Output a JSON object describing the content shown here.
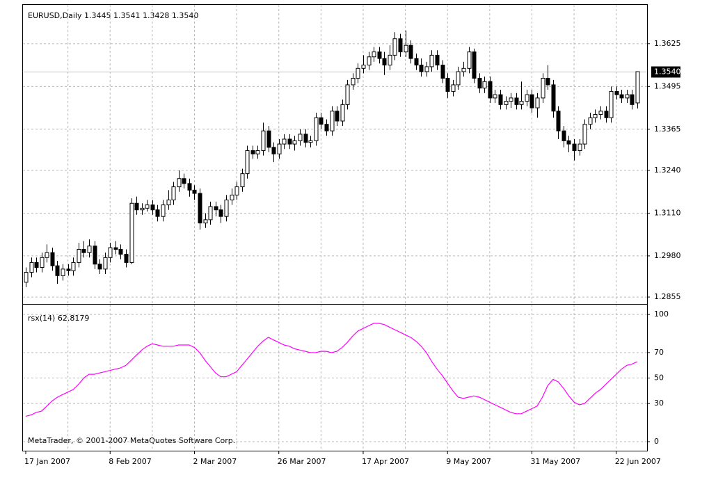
{
  "chart_data": [
    {
      "type": "candlestick",
      "title": "EURUSD,Daily  1.3445 1.3541 1.3428 1.3540",
      "categories": [
        "17 Jan 2007",
        null,
        null,
        null,
        null,
        null,
        null,
        null,
        null,
        null,
        null,
        null,
        null,
        null,
        null,
        null,
        "8 Feb 2007",
        null,
        null,
        null,
        null,
        null,
        null,
        null,
        null,
        null,
        null,
        null,
        null,
        null,
        null,
        null,
        "2 Mar 2007",
        null,
        null,
        null,
        null,
        null,
        null,
        null,
        null,
        null,
        null,
        null,
        null,
        null,
        null,
        null,
        "26 Mar 2007",
        null,
        null,
        null,
        null,
        null,
        null,
        null,
        null,
        null,
        null,
        null,
        null,
        null,
        null,
        null,
        "17 Apr 2007",
        null,
        null,
        null,
        null,
        null,
        null,
        null,
        null,
        null,
        null,
        null,
        null,
        null,
        null,
        null,
        "9 May 2007",
        null,
        null,
        null,
        null,
        null,
        null,
        null,
        null,
        null,
        null,
        null,
        null,
        null,
        null,
        null,
        "31 May 2007",
        null,
        null,
        null,
        null,
        null,
        null,
        null,
        null,
        null,
        null,
        null,
        null,
        null,
        null,
        null,
        "22 Jun 2007",
        null,
        null,
        null,
        null
      ],
      "open": [
        1.29,
        1.293,
        1.296,
        1.2945,
        1.2975,
        1.299,
        1.295,
        1.292,
        1.294,
        1.2935,
        1.296,
        1.3,
        1.299,
        1.301,
        1.2955,
        1.294,
        1.2975,
        1.3005,
        1.3,
        1.2985,
        1.296,
        1.314,
        1.312,
        1.3125,
        1.3135,
        1.312,
        1.31,
        1.3135,
        1.315,
        1.319,
        1.3215,
        1.32,
        1.318,
        1.317,
        1.308,
        1.309,
        1.313,
        1.312,
        1.31,
        1.315,
        1.3165,
        1.319,
        1.323,
        1.33,
        1.329,
        1.33,
        1.336,
        1.331,
        1.329,
        1.332,
        1.3335,
        1.332,
        1.333,
        1.335,
        1.3325,
        1.333,
        1.34,
        1.338,
        1.336,
        1.342,
        1.339,
        1.344,
        1.35,
        1.352,
        1.355,
        1.356,
        1.3585,
        1.36,
        1.358,
        1.356,
        1.359,
        1.364,
        1.36,
        1.362,
        1.358,
        1.356,
        1.354,
        1.3555,
        1.359,
        1.356,
        1.352,
        1.348,
        1.35,
        1.354,
        1.355,
        1.36,
        1.352,
        1.349,
        1.351,
        1.346,
        1.347,
        1.344,
        1.345,
        1.346,
        1.344,
        1.345,
        1.347,
        1.343,
        1.346,
        1.352,
        1.35,
        1.342,
        1.336,
        1.333,
        1.332,
        1.33,
        1.332,
        1.338,
        1.34,
        1.341,
        1.342,
        1.34,
        1.348,
        1.347,
        1.346,
        1.347,
        1.3445
      ],
      "high": [
        1.2945,
        1.2975,
        1.2975,
        1.299,
        1.3015,
        1.3005,
        1.2965,
        1.2955,
        1.2955,
        1.2975,
        1.302,
        1.3025,
        1.303,
        1.3025,
        1.297,
        1.299,
        1.302,
        1.3025,
        1.3015,
        1.3,
        1.3155,
        1.316,
        1.314,
        1.315,
        1.315,
        1.3135,
        1.315,
        1.318,
        1.3205,
        1.324,
        1.323,
        1.3215,
        1.3195,
        1.3185,
        1.311,
        1.3145,
        1.3145,
        1.3135,
        1.3165,
        1.3185,
        1.3205,
        1.3245,
        1.3315,
        1.3315,
        1.3315,
        1.3385,
        1.3375,
        1.3325,
        1.3335,
        1.335,
        1.335,
        1.3345,
        1.3365,
        1.3365,
        1.3345,
        1.3415,
        1.3415,
        1.3395,
        1.3435,
        1.3435,
        1.3455,
        1.3515,
        1.3535,
        1.3565,
        1.359,
        1.36,
        1.3615,
        1.3615,
        1.36,
        1.362,
        1.366,
        1.3655,
        1.3665,
        1.3635,
        1.3595,
        1.358,
        1.357,
        1.3605,
        1.3605,
        1.3575,
        1.3535,
        1.3515,
        1.3555,
        1.357,
        1.3615,
        1.361,
        1.3535,
        1.3525,
        1.3525,
        1.3485,
        1.3485,
        1.3465,
        1.3475,
        1.3475,
        1.351,
        1.3485,
        1.3485,
        1.3475,
        1.3535,
        1.356,
        1.3515,
        1.3435,
        1.3375,
        1.3345,
        1.3335,
        1.3335,
        1.3395,
        1.3415,
        1.3425,
        1.3435,
        1.3435,
        1.3495,
        1.3495,
        1.3485,
        1.3485,
        1.3485,
        1.3541
      ],
      "low": [
        1.2885,
        1.2915,
        1.293,
        1.293,
        1.296,
        1.2935,
        1.2895,
        1.2905,
        1.292,
        1.292,
        1.2945,
        1.2975,
        1.2975,
        1.294,
        1.2925,
        1.2925,
        1.296,
        1.2985,
        1.297,
        1.2945,
        1.2955,
        1.3105,
        1.3105,
        1.3115,
        1.3105,
        1.3085,
        1.3085,
        1.312,
        1.3135,
        1.3175,
        1.3185,
        1.316,
        1.315,
        1.306,
        1.3065,
        1.3075,
        1.31,
        1.308,
        1.3085,
        1.3135,
        1.315,
        1.3175,
        1.3215,
        1.3275,
        1.3275,
        1.3285,
        1.3295,
        1.3265,
        1.3275,
        1.3305,
        1.3305,
        1.33,
        1.3315,
        1.331,
        1.331,
        1.3315,
        1.3365,
        1.3345,
        1.3345,
        1.3375,
        1.3375,
        1.3425,
        1.3485,
        1.3505,
        1.3535,
        1.3545,
        1.357,
        1.3565,
        1.353,
        1.3545,
        1.3575,
        1.3585,
        1.3585,
        1.3565,
        1.3545,
        1.3525,
        1.3525,
        1.354,
        1.3545,
        1.3505,
        1.346,
        1.3465,
        1.3485,
        1.3525,
        1.3535,
        1.3505,
        1.3475,
        1.3475,
        1.3445,
        1.3445,
        1.3425,
        1.3425,
        1.343,
        1.3425,
        1.3425,
        1.3435,
        1.3415,
        1.34,
        1.3445,
        1.3485,
        1.34,
        1.3335,
        1.331,
        1.3295,
        1.327,
        1.3285,
        1.3305,
        1.3365,
        1.3385,
        1.3395,
        1.3385,
        1.3385,
        1.3455,
        1.3445,
        1.3445,
        1.3425,
        1.3428
      ],
      "close": [
        1.293,
        1.296,
        1.2945,
        1.2975,
        1.299,
        1.295,
        1.292,
        1.294,
        1.2935,
        1.296,
        1.3,
        1.299,
        1.301,
        1.2955,
        1.294,
        1.2975,
        1.3005,
        1.3,
        1.2985,
        1.296,
        1.314,
        1.312,
        1.3125,
        1.3135,
        1.312,
        1.31,
        1.3135,
        1.315,
        1.319,
        1.3215,
        1.32,
        1.318,
        1.317,
        1.308,
        1.309,
        1.313,
        1.312,
        1.31,
        1.315,
        1.3165,
        1.319,
        1.323,
        1.33,
        1.329,
        1.33,
        1.336,
        1.331,
        1.329,
        1.332,
        1.3335,
        1.332,
        1.333,
        1.335,
        1.3325,
        1.333,
        1.34,
        1.338,
        1.336,
        1.342,
        1.339,
        1.344,
        1.35,
        1.352,
        1.355,
        1.356,
        1.3585,
        1.36,
        1.358,
        1.356,
        1.359,
        1.364,
        1.36,
        1.362,
        1.358,
        1.356,
        1.354,
        1.3555,
        1.359,
        1.356,
        1.352,
        1.348,
        1.35,
        1.354,
        1.355,
        1.36,
        1.352,
        1.349,
        1.351,
        1.346,
        1.347,
        1.344,
        1.345,
        1.346,
        1.344,
        1.345,
        1.347,
        1.343,
        1.346,
        1.352,
        1.35,
        1.342,
        1.336,
        1.333,
        1.332,
        1.33,
        1.332,
        1.338,
        1.34,
        1.341,
        1.342,
        1.34,
        1.348,
        1.347,
        1.346,
        1.347,
        1.344,
        1.354
      ],
      "up_color": "#ffffff",
      "down_color": "#000000",
      "ylim": [
        1.2834,
        1.3743
      ],
      "yticks": [
        1.3625,
        1.3495,
        1.3365,
        {
          "value": 1.324,
          "label": "1.3240"
        },
        {
          "value": 1.311,
          "label": "1.3110"
        },
        {
          "value": 1.298,
          "label": "1.2980"
        },
        1.2855
      ],
      "last_price": {
        "value": 1.354,
        "label": "1.3540"
      },
      "grid": true
    },
    {
      "type": "line",
      "title": "rsx(14) 62.8179",
      "annotation": "MetaTrader, © 2001-2007 MetaQuotes Software Corp.",
      "color": "#ff00ff",
      "values": [
        20,
        21,
        23,
        24,
        28,
        32,
        35,
        37,
        39,
        41,
        45,
        50,
        53,
        53,
        54,
        55,
        56,
        57,
        58,
        60,
        64,
        68,
        72,
        75,
        77,
        76,
        75,
        75,
        75,
        76,
        76,
        76,
        74,
        70,
        64,
        59,
        54,
        51,
        51,
        53,
        55,
        60,
        65,
        70,
        75,
        79,
        82,
        80,
        78,
        76,
        75,
        73,
        72,
        71,
        70,
        70,
        71,
        71,
        70,
        71,
        74,
        78,
        83,
        87,
        89,
        91,
        93,
        93,
        92,
        90,
        88,
        86,
        84,
        82,
        79,
        75,
        70,
        63,
        57,
        52,
        46,
        40,
        35,
        34,
        35,
        36,
        35,
        33,
        31,
        29,
        27,
        25,
        23,
        22,
        22,
        24,
        26,
        28,
        35,
        44,
        49,
        47,
        42,
        36,
        31,
        29,
        30,
        34,
        38,
        41,
        45,
        49,
        53,
        57,
        60,
        61,
        62.8179
      ],
      "ylim": [
        -7.1,
        107.7
      ],
      "yticks": [
        0,
        30,
        50,
        70,
        100
      ],
      "grid": true
    }
  ]
}
